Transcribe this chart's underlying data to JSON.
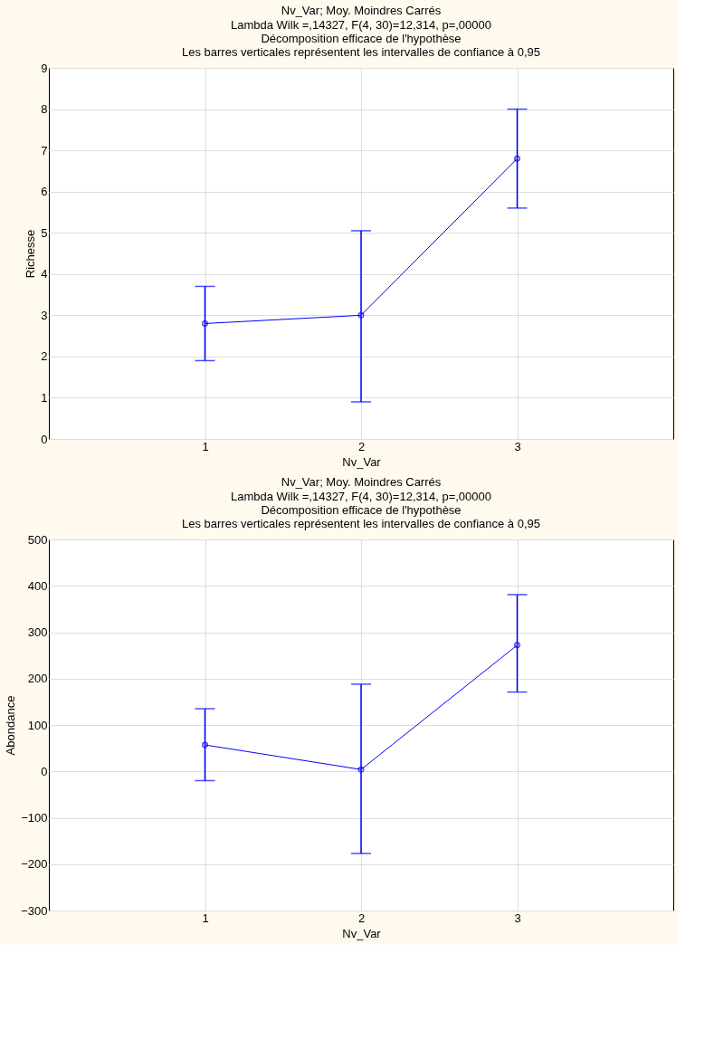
{
  "chart_data": [
    {
      "type": "line",
      "title": "Nv_Var; Moy. Moindres Carrés",
      "subtitle": "Lambda Wilk =,14327, F(4, 30)=12,314, p=,00000\nDécomposition efficace de l'hypothèse\nLes barres verticales représentent les intervalles de confiance à 0,95",
      "xlabel": "Nv_Var",
      "ylabel": "Richesse",
      "x": [
        1,
        2,
        3
      ],
      "xlim": [
        0,
        4
      ],
      "xticks": [
        1,
        2,
        3
      ],
      "ylim": [
        0,
        9
      ],
      "yticks": [
        0,
        1,
        2,
        3,
        4,
        5,
        6,
        7,
        8,
        9
      ],
      "series": [
        {
          "color": "#0000ff",
          "values": [
            2.8,
            3.0,
            6.8
          ],
          "errors": [
            [
              1.9,
              3.7
            ],
            [
              0.9,
              5.05
            ],
            [
              5.6,
              8.0
            ]
          ]
        }
      ],
      "grid": true,
      "marker": "circle",
      "line_style": "solid"
    },
    {
      "type": "line",
      "title": "Nv_Var; Moy. Moindres Carrés",
      "subtitle": "Lambda Wilk =,14327, F(4, 30)=12,314, p=,00000\nDécomposition efficace de l'hypothèse\nLes barres verticales représentent les intervalles de confiance à 0,95",
      "xlabel": "Nv_Var",
      "ylabel": "Abondance",
      "x": [
        1,
        2,
        3
      ],
      "xlim": [
        0,
        4
      ],
      "xticks": [
        1,
        2,
        3
      ],
      "ylim": [
        -300,
        500
      ],
      "yticks": [
        -300,
        -200,
        -100,
        0,
        100,
        200,
        300,
        400,
        500
      ],
      "series": [
        {
          "color": "#0000ff",
          "values": [
            57,
            4,
            272
          ],
          "errors": [
            [
              -20,
              135
            ],
            [
              -177,
              188
            ],
            [
              171,
              381
            ]
          ]
        }
      ],
      "grid": true,
      "marker": "circle",
      "line_style": "solid"
    }
  ]
}
